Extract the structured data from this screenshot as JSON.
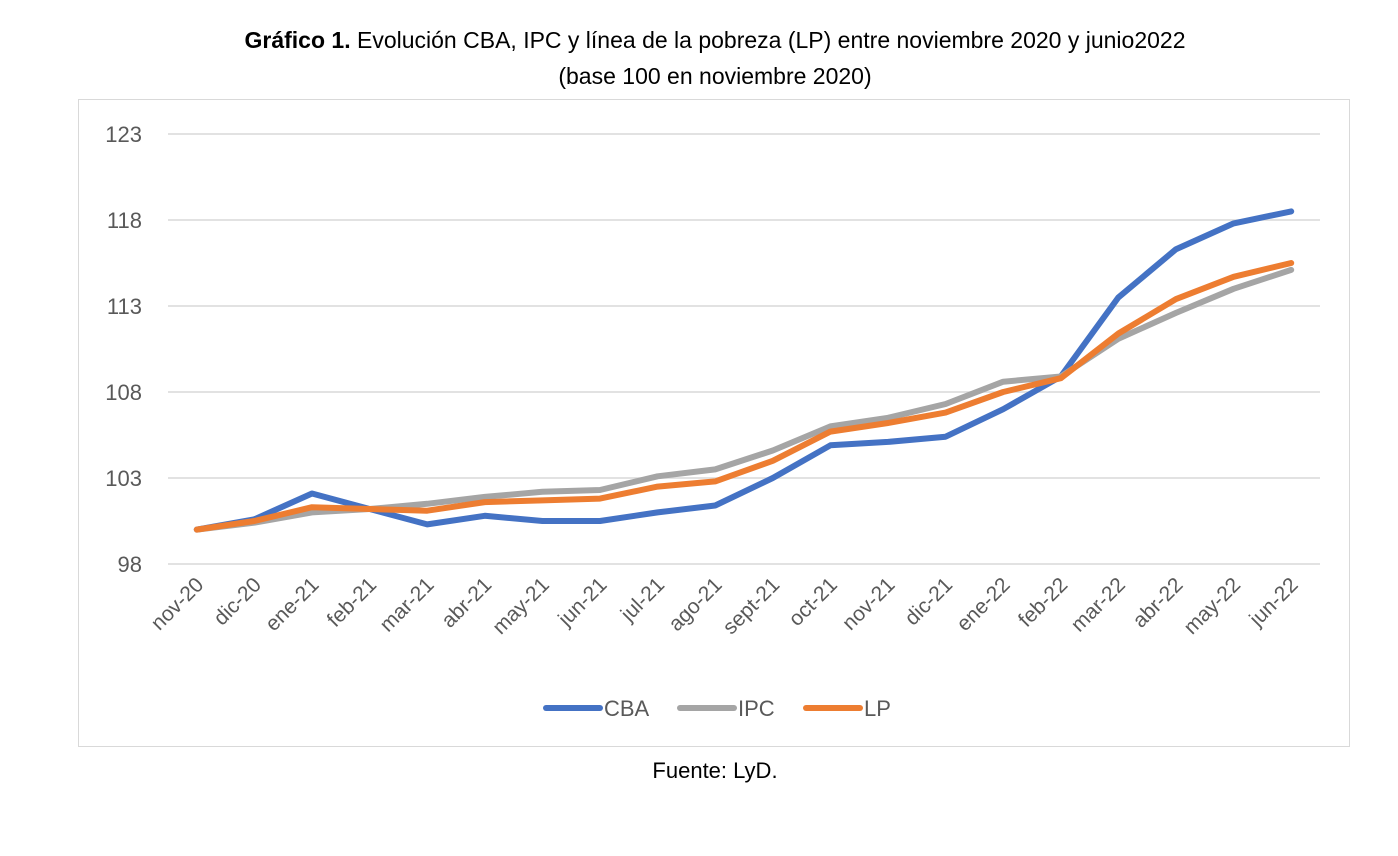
{
  "title": {
    "bold_prefix": "Gráfico 1.",
    "line1_rest": " Evolución CBA, IPC y línea de la pobreza (LP) entre noviembre 2020 y junio2022",
    "line2": "(base 100 en noviembre 2020)"
  },
  "source": "Fuente: LyD.",
  "chart_data": {
    "type": "line",
    "title": "Gráfico 1. Evolución CBA, IPC y línea de la pobreza (LP) entre noviembre 2020 y junio2022 (base 100 en noviembre 2020)",
    "xlabel": "",
    "ylabel": "",
    "ylim": [
      98,
      123
    ],
    "yticks": [
      98,
      103,
      108,
      113,
      118,
      123
    ],
    "grid": true,
    "legend": "bottom",
    "categories": [
      "nov-20",
      "dic-20",
      "ene-21",
      "feb-21",
      "mar-21",
      "abr-21",
      "may-21",
      "jun-21",
      "jul-21",
      "ago-21",
      "sept-21",
      "oct-21",
      "nov-21",
      "dic-21",
      "ene-22",
      "feb-22",
      "mar-22",
      "abr-22",
      "may-22",
      "jun-22"
    ],
    "series": [
      {
        "name": "CBA",
        "color": "#4472c4",
        "values": [
          100,
          100.6,
          102.1,
          101.2,
          100.3,
          100.8,
          100.5,
          100.5,
          101.0,
          101.4,
          103.0,
          104.9,
          105.1,
          105.4,
          107.0,
          108.9,
          113.5,
          116.3,
          117.8,
          118.5
        ]
      },
      {
        "name": "IPC",
        "color": "#a5a5a5",
        "values": [
          100,
          100.4,
          101.0,
          101.2,
          101.5,
          101.9,
          102.2,
          102.3,
          103.1,
          103.5,
          104.6,
          106.0,
          106.5,
          107.3,
          108.6,
          108.9,
          111.1,
          112.6,
          114.0,
          115.1
        ]
      },
      {
        "name": "LP",
        "color": "#ed7d31",
        "values": [
          100,
          100.5,
          101.3,
          101.2,
          101.1,
          101.6,
          101.7,
          101.8,
          102.5,
          102.8,
          104.0,
          105.7,
          106.2,
          106.8,
          108.0,
          108.8,
          111.4,
          113.4,
          114.7,
          115.5
        ]
      }
    ]
  }
}
